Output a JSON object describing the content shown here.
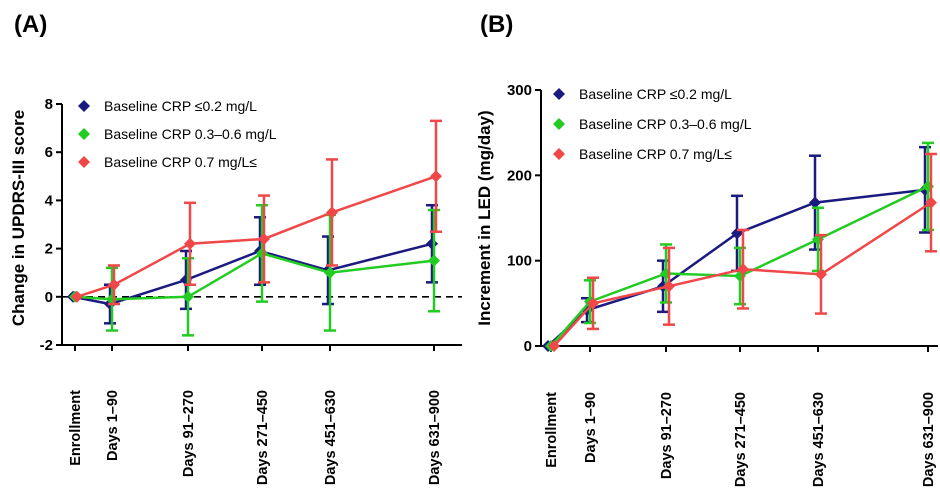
{
  "chart_data": [
    {
      "type": "line",
      "panel_label": "(A)",
      "ylabel": "Change in UPDRS-III score",
      "categories": [
        "Enrollment",
        "Days 1–90",
        "Days 91–270",
        "Days 271–450",
        "Days 451–630",
        "Days 631–900"
      ],
      "ylim": [
        -2,
        8
      ],
      "yticks": [
        "-2",
        "0",
        "2",
        "4",
        "6",
        "8"
      ],
      "reference_line": 0,
      "legend_position": "top-left",
      "series": [
        {
          "name": "Baseline CRP ≤0.2 mg/L",
          "color": "#1a1a80",
          "values": [
            0,
            -0.3,
            0.7,
            1.9,
            1.1,
            2.2
          ],
          "error": [
            0,
            0.8,
            1.2,
            1.4,
            1.4,
            1.6
          ]
        },
        {
          "name": "Baseline CRP 0.3–0.6 mg/L",
          "color": "#22cc22",
          "values": [
            0,
            -0.1,
            0.0,
            1.8,
            1.0,
            1.5
          ],
          "error": [
            0,
            1.3,
            1.6,
            2.0,
            2.4,
            2.1
          ]
        },
        {
          "name": "Baseline CRP 0.7 mg/L≤",
          "color": "#f04848",
          "values": [
            0,
            0.5,
            2.2,
            2.4,
            3.5,
            5.0
          ],
          "error": [
            0,
            0.8,
            1.7,
            1.8,
            2.2,
            2.3
          ]
        }
      ]
    },
    {
      "type": "line",
      "panel_label": "(B)",
      "ylabel": "Increment in LED (mg/day)",
      "categories": [
        "Enrollment",
        "Days 1–90",
        "Days 91–270",
        "Days 271–450",
        "Days 451–630",
        "Days 631–900"
      ],
      "ylim": [
        0,
        300
      ],
      "yticks": [
        "0",
        "100",
        "200",
        "300"
      ],
      "reference_line": 0,
      "legend_position": "top-left",
      "series": [
        {
          "name": "Baseline CRP ≤0.2 mg/L",
          "color": "#1a1a80",
          "values": [
            0,
            42,
            70,
            132,
            168,
            183
          ],
          "error": [
            0,
            14,
            30,
            44,
            55,
            50
          ]
        },
        {
          "name": "Baseline CRP 0.3–0.6 mg/L",
          "color": "#22cc22",
          "values": [
            0,
            52,
            85,
            82,
            125,
            187
          ],
          "error": [
            0,
            25,
            34,
            33,
            37,
            51
          ]
        },
        {
          "name": "Baseline CRP 0.7 mg/L≤",
          "color": "#f04848",
          "values": [
            0,
            50,
            70,
            90,
            84,
            168
          ],
          "error": [
            0,
            30,
            45,
            46,
            46,
            57
          ]
        }
      ]
    }
  ]
}
